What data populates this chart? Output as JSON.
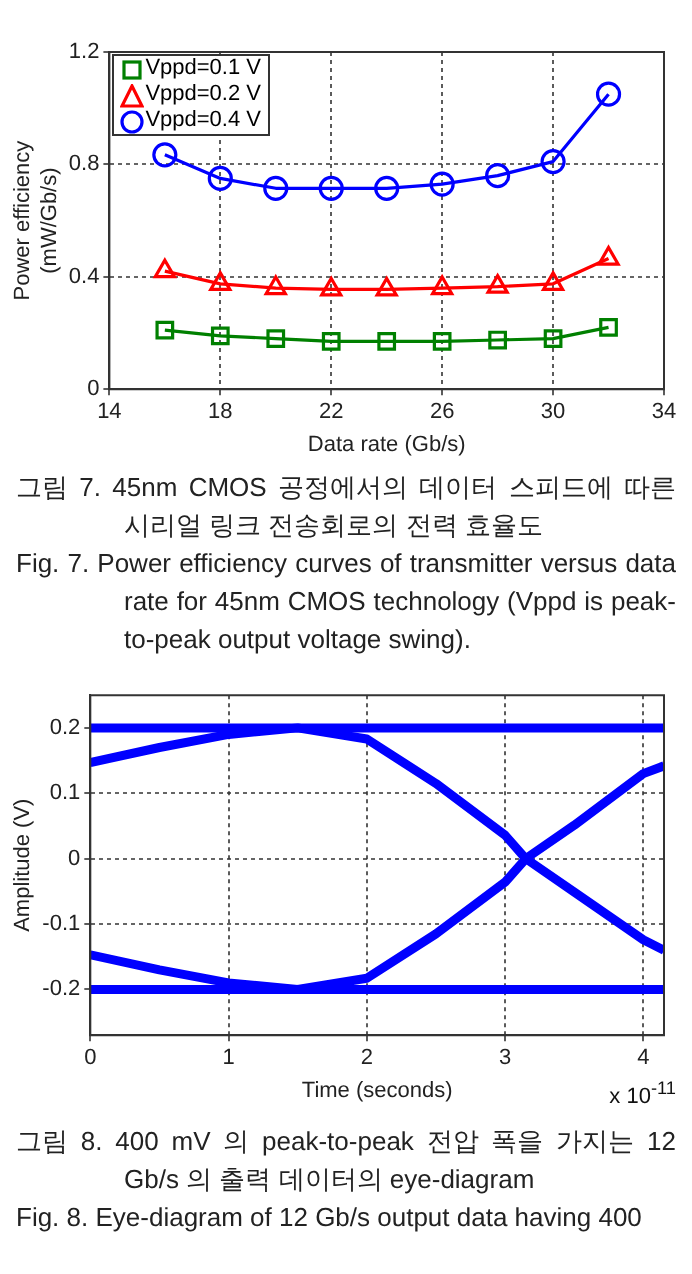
{
  "chart_data": [
    {
      "type": "line",
      "xlabel": "Data rate (Gb/s)",
      "ylabel": "Power efficiency\n(mW/Gb/s)",
      "x": [
        16,
        18,
        20,
        22,
        24,
        26,
        28,
        30,
        32
      ],
      "series": [
        {
          "name": "Vppd=0.1 V",
          "color": "#008000",
          "marker": "square",
          "values": [
            0.21,
            0.19,
            0.18,
            0.17,
            0.17,
            0.17,
            0.175,
            0.18,
            0.22
          ]
        },
        {
          "name": "Vppd=0.2 V",
          "color": "#ff0000",
          "marker": "triangle",
          "values": [
            0.42,
            0.375,
            0.36,
            0.355,
            0.355,
            0.36,
            0.365,
            0.375,
            0.465
          ]
        },
        {
          "name": "Vppd=0.4 V",
          "color": "#0000ff",
          "marker": "circle",
          "values": [
            0.834,
            0.75,
            0.715,
            0.715,
            0.715,
            0.73,
            0.76,
            0.81,
            1.05
          ]
        }
      ],
      "xlim": [
        14,
        34
      ],
      "xticks": [
        14,
        18,
        22,
        26,
        30,
        34
      ],
      "ylim": [
        0,
        1.2
      ],
      "yticks": [
        0,
        0.4,
        0.8,
        1.2
      ],
      "grid": true,
      "legend": "top left",
      "line_style": "solid",
      "annotations": [
        "그림 7. 45nm CMOS 공정에서의 데이터 스피드에 따른 시리얼 링크 전송회로의 전력 효율도",
        "Fig. 7. Power efficiency curves of transmitter versus data rate for 45nm CMOS technology (Vppd is peak-to-peak output voltage swing)."
      ]
    },
    {
      "type": "line",
      "xlabel": "Time (seconds)",
      "ylabel": "Amplitude (V)",
      "series": [
        {
          "color": "#0000ff",
          "x": [
            0,
            4.15
          ],
          "values": [
            0.2,
            0.2
          ]
        },
        {
          "color": "#0000ff",
          "x": [
            0,
            4.15
          ],
          "values": [
            -0.2,
            -0.2
          ]
        },
        {
          "color": "#0000ff",
          "x": [
            0,
            0.5,
            1,
            1.5,
            2,
            2.5,
            3,
            3.15,
            3.5,
            4,
            4.15
          ],
          "values": [
            0.147,
            0.17,
            0.19,
            0.2,
            0.183,
            0.115,
            0.036,
            0,
            -0.051,
            -0.124,
            -0.14
          ]
        },
        {
          "color": "#0000ff",
          "x": [
            0,
            0.5,
            1,
            1.5,
            2,
            2.5,
            3,
            3.15,
            3.5,
            4,
            4.15
          ],
          "values": [
            -0.147,
            -0.17,
            -0.19,
            -0.2,
            -0.183,
            -0.115,
            -0.036,
            0,
            0.051,
            0.13,
            0.142
          ]
        }
      ],
      "xlim": [
        0,
        4.15
      ],
      "xticks": [
        0,
        1,
        2,
        3,
        4
      ],
      "ylim": [
        -0.27,
        0.25
      ],
      "yticks": [
        -0.2,
        -0.1,
        0,
        0.1,
        0.2
      ],
      "grid": true,
      "marker": "none",
      "line_style": "solid",
      "annotations": [
        "x 10$^{-11}$",
        "그림 8. 400 mV 의 peak-to-peak 전압 폭을 가지는 12 Gb/s 의 출력 데이터의 eye-diagram",
        "Fig. 8. Eye-diagram of 12 Gb/s output data having 400"
      ]
    }
  ]
}
